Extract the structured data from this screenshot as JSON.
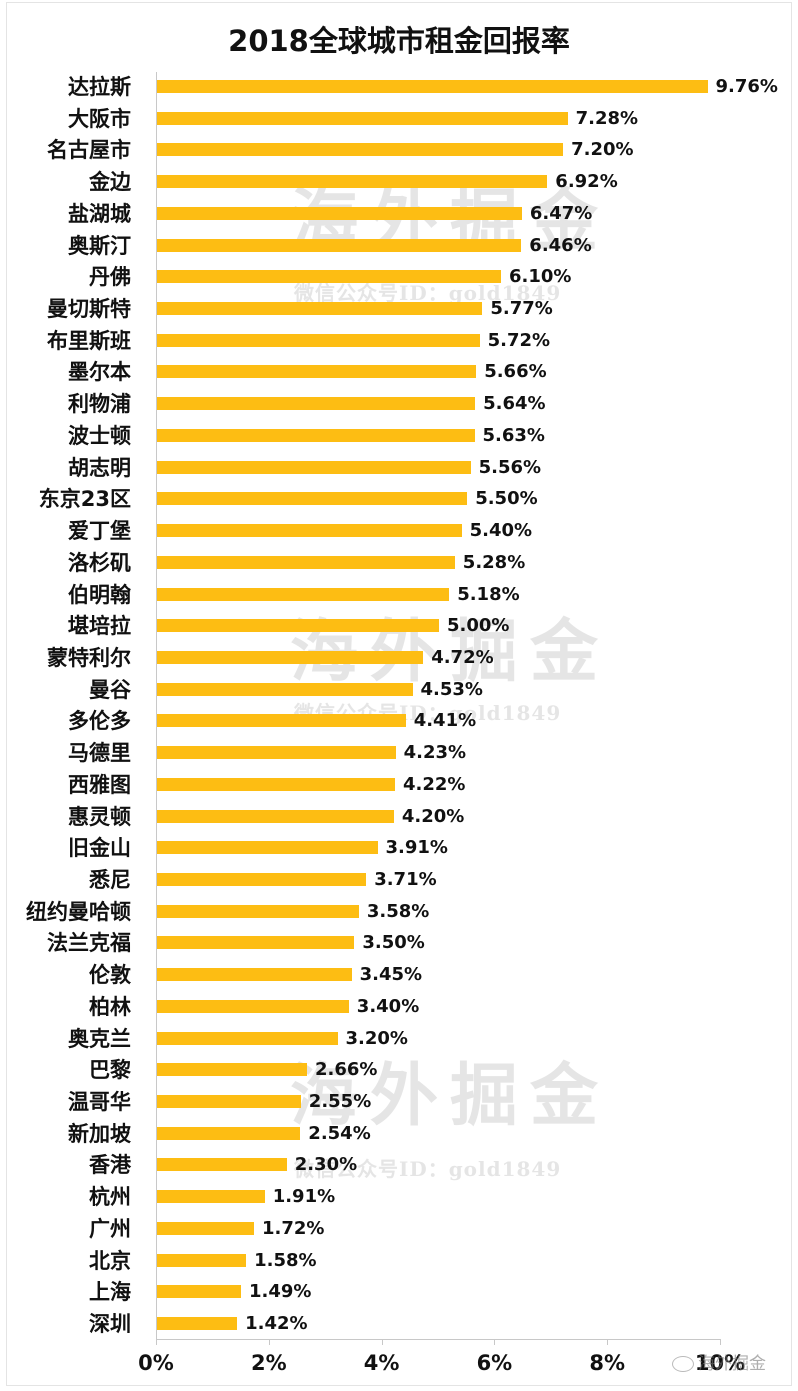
{
  "chart_data": {
    "type": "bar",
    "orientation": "horizontal",
    "title": "2018全球城市租金回报率",
    "xlabel": "",
    "ylabel": "",
    "xlim": [
      0,
      10
    ],
    "x_ticks": [
      "0%",
      "2%",
      "4%",
      "6%",
      "8%",
      "10%"
    ],
    "grid": false,
    "legend": null,
    "bar_color": "#FDBD13",
    "categories": [
      "达拉斯",
      "大阪市",
      "名古屋市",
      "金边",
      "盐湖城",
      "奥斯汀",
      "丹佛",
      "曼切斯特",
      "布里斯班",
      "墨尔本",
      "利物浦",
      "波士顿",
      "胡志明",
      "东京23区",
      "爱丁堡",
      "洛杉矶",
      "伯明翰",
      "堪培拉",
      "蒙特利尔",
      "曼谷",
      "多伦多",
      "马德里",
      "西雅图",
      "惠灵顿",
      "旧金山",
      "悉尼",
      "纽约曼哈顿",
      "法兰克福",
      "伦敦",
      "柏林",
      "奥克兰",
      "巴黎",
      "温哥华",
      "新加坡",
      "香港",
      "杭州",
      "广州",
      "北京",
      "上海",
      "深圳"
    ],
    "values": [
      9.76,
      7.28,
      7.2,
      6.92,
      6.47,
      6.46,
      6.1,
      5.77,
      5.72,
      5.66,
      5.64,
      5.63,
      5.56,
      5.5,
      5.4,
      5.28,
      5.18,
      5.0,
      4.72,
      4.53,
      4.41,
      4.23,
      4.22,
      4.2,
      3.91,
      3.71,
      3.58,
      3.5,
      3.45,
      3.4,
      3.2,
      2.66,
      2.55,
      2.54,
      2.3,
      1.91,
      1.72,
      1.58,
      1.49,
      1.42
    ],
    "value_labels": [
      "9.76%",
      "7.28%",
      "7.20%",
      "6.92%",
      "6.47%",
      "6.46%",
      "6.10%",
      "5.77%",
      "5.72%",
      "5.66%",
      "5.64%",
      "5.63%",
      "5.56%",
      "5.50%",
      "5.40%",
      "5.28%",
      "5.18%",
      "5.00%",
      "4.72%",
      "4.53%",
      "4.41%",
      "4.23%",
      "4.22%",
      "4.20%",
      "3.91%",
      "3.71%",
      "3.58%",
      "3.50%",
      "3.45%",
      "3.40%",
      "3.20%",
      "2.66%",
      "2.55%",
      "2.54%",
      "2.30%",
      "1.91%",
      "1.72%",
      "1.58%",
      "1.49%",
      "1.42%"
    ],
    "unit": "%"
  },
  "watermarks": {
    "big": "海外掘金",
    "small": "微信公众号ID：gold1849",
    "brand": "海外掘金"
  }
}
